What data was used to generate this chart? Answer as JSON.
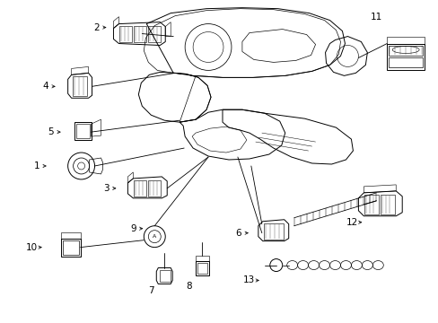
{
  "background_color": "#ffffff",
  "fig_width": 4.89,
  "fig_height": 3.6,
  "dpi": 100,
  "line_color": "#000000",
  "text_color": "#000000",
  "lw": 0.7
}
